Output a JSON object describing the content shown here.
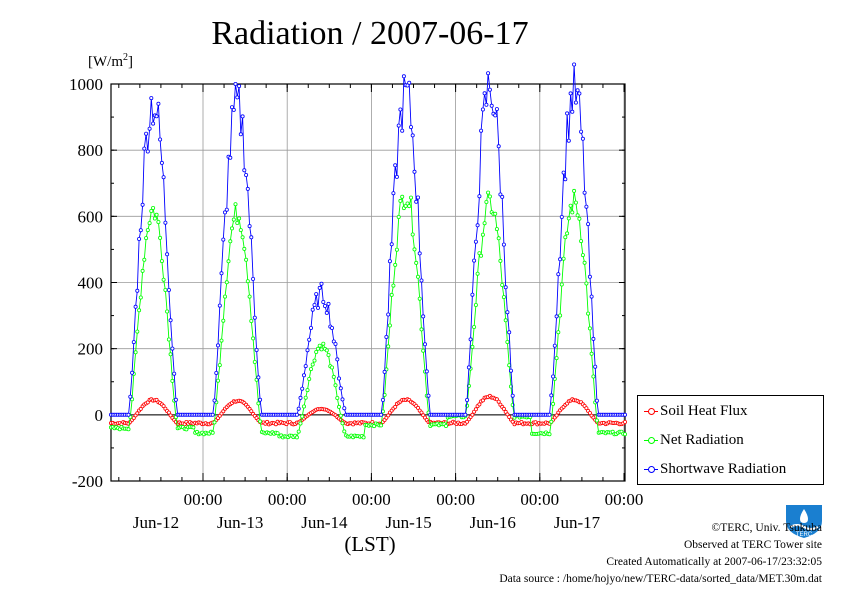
{
  "title": "Radiation / 2007-06-17",
  "unit": {
    "text": "[W/m",
    "sup": "2",
    "close": "]"
  },
  "chart_data": {
    "type": "line",
    "title": "Radiation / 2007-06-17",
    "xlabel": "(LST)",
    "ylabel": "[W/m2]",
    "ylim": [
      -200,
      1000
    ],
    "yticks": [
      -200,
      0,
      200,
      400,
      600,
      800,
      1000
    ],
    "xlim_days": [
      0,
      6.12
    ],
    "x_tick_labels": [
      {
        "time": "00:00",
        "date": "Jun-12"
      },
      {
        "time": "00:00",
        "date": "Jun-13"
      },
      {
        "time": "00:00",
        "date": "Jun-14"
      },
      {
        "time": "00:00",
        "date": "Jun-15"
      },
      {
        "time": "00:00",
        "date": "Jun-16"
      },
      {
        "time": "00:00",
        "date": "Jun-17"
      }
    ],
    "grid": true,
    "legend_position": "outside-bottom-right",
    "series": [
      {
        "name": "Soil Heat Flux",
        "color": "#ff0000",
        "night": -25,
        "peak": [
          45,
          42,
          18,
          45,
          55,
          45
        ]
      },
      {
        "name": "Net Radiation",
        "color": "#00ff00",
        "night": [
          -40,
          -55,
          -65,
          -30,
          -5,
          -55,
          -70,
          -50
        ],
        "peak": [
          620,
          610,
          210,
          670,
          640,
          645
        ]
      },
      {
        "name": "Shortwave Radiation",
        "color": "#0000ff",
        "night": 0,
        "peak": [
          945,
          930,
          365,
          965,
          990,
          975
        ]
      }
    ]
  },
  "legend": {
    "items": [
      {
        "label": "Soil Heat Flux",
        "color": "#ff0000"
      },
      {
        "label": "Net Radiation",
        "color": "#00ff00"
      },
      {
        "label": "Shortwave Radiation",
        "color": "#0000ff"
      }
    ]
  },
  "footer": {
    "copyright": "©TERC, Univ. Tsukuba",
    "observed": "Observed at TERC Tower site",
    "created": "Created Automatically at 2007-06-17/23:32:05",
    "source": "Data source : /home/hojyo/new/TERC-data/sorted_data/MET.30m.dat"
  },
  "logo": {
    "text": "TERC",
    "icon": "terc-logo"
  }
}
